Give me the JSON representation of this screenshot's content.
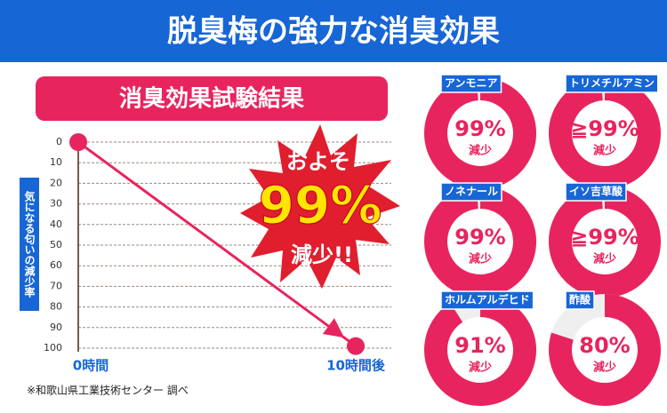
{
  "header": {
    "title": "脱臭梅の強力な消臭効果"
  },
  "chart_data": [
    {
      "type": "line",
      "title": "消臭効果試験結果",
      "y_label": "気になる匂いの減少率",
      "categories": [
        "0時間",
        "10時間後"
      ],
      "values": [
        0,
        99
      ],
      "color": "#e8245e",
      "ylim": [
        0,
        100
      ],
      "y_inverted": true,
      "yticks": [
        0,
        10,
        20,
        30,
        40,
        50,
        60,
        70,
        80,
        90,
        100
      ],
      "grid": true,
      "callout": {
        "top": "およそ",
        "value": "99%",
        "bottom": "減少!!"
      },
      "note": "※和歌山県工業技術センター 調べ"
    },
    {
      "type": "donut",
      "title": "アンモニア",
      "values": [
        99
      ],
      "value_labels": [
        "99%"
      ],
      "sublabel": "減少",
      "color": "#e8245e"
    },
    {
      "type": "donut",
      "title": "トリメチルアミン",
      "values": [
        99
      ],
      "value_labels": [
        "≧99%"
      ],
      "sublabel": "減少",
      "color": "#e8245e"
    },
    {
      "type": "donut",
      "title": "ノネナール",
      "values": [
        99
      ],
      "value_labels": [
        "99%"
      ],
      "sublabel": "減少",
      "color": "#e8245e"
    },
    {
      "type": "donut",
      "title": "イソ吉草酸",
      "values": [
        99
      ],
      "value_labels": [
        "≧99%"
      ],
      "sublabel": "減少",
      "color": "#e8245e"
    },
    {
      "type": "donut",
      "title": "ホルムアルデヒド",
      "values": [
        91
      ],
      "value_labels": [
        "91%"
      ],
      "sublabel": "減少",
      "color": "#e8245e"
    },
    {
      "type": "donut",
      "title": "酢酸",
      "values": [
        80
      ],
      "value_labels": [
        "80%"
      ],
      "sublabel": "減少",
      "color": "#e8245e"
    }
  ]
}
